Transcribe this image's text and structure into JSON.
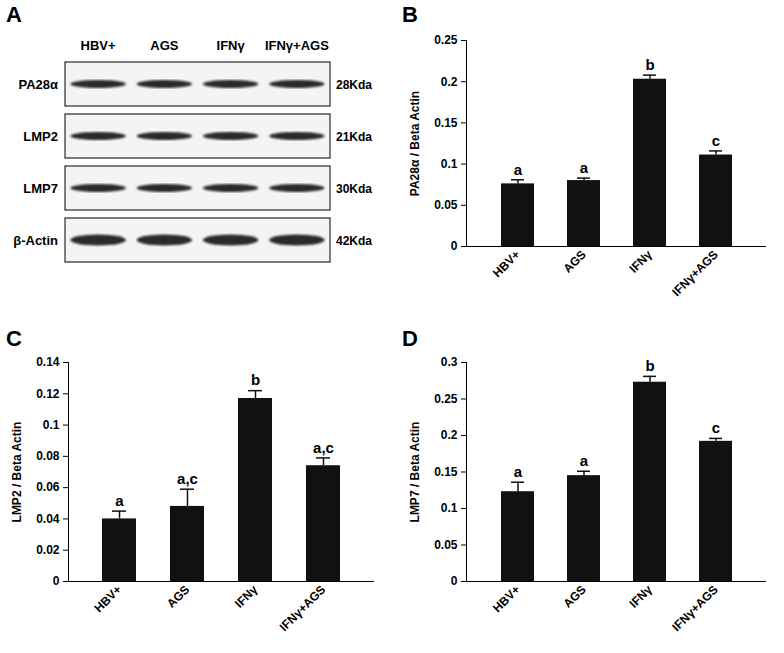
{
  "blot": {
    "panel": "A",
    "lanes": [
      "HBV+",
      "AGS",
      "IFNγ",
      "IFNγ+AGS"
    ],
    "rows": [
      {
        "protein": "PA28α",
        "size": "28Kda"
      },
      {
        "protein": "LMP2",
        "size": "21Kda"
      },
      {
        "protein": "LMP7",
        "size": "30Kda"
      },
      {
        "protein": "β-Actin",
        "size": "42Kda"
      }
    ]
  },
  "chart_data": [
    {
      "panel": "B",
      "type": "bar",
      "y_label": "PA28α / Beta Actin",
      "categories": [
        "HBV+",
        "AGS",
        "IFNγ",
        "IFNγ+AGS"
      ],
      "values": [
        0.076,
        0.08,
        0.203,
        0.111
      ],
      "errors": [
        0.005,
        0.003,
        0.005,
        0.005
      ],
      "annotations": [
        "a",
        "a",
        "b",
        "c"
      ],
      "color": "#111111",
      "ylim": [
        0,
        0.25
      ],
      "yticks": [
        0,
        0.05,
        0.1,
        0.15,
        0.2,
        0.25
      ]
    },
    {
      "panel": "C",
      "type": "bar",
      "y_label": "LMP2 / Beta Actin",
      "categories": [
        "HBV+",
        "AGS",
        "IFNγ",
        "IFNγ+AGS"
      ],
      "values": [
        0.04,
        0.048,
        0.117,
        0.074
      ],
      "errors": [
        0.005,
        0.011,
        0.005,
        0.005
      ],
      "annotations": [
        "a",
        "a,c",
        "b",
        "a,c"
      ],
      "color": "#111111",
      "ylim": [
        0,
        0.14
      ],
      "yticks": [
        0,
        0.02,
        0.04,
        0.06,
        0.08,
        0.1,
        0.12,
        0.14
      ]
    },
    {
      "panel": "D",
      "type": "bar",
      "y_label": "LMP7 / Beta Actin",
      "categories": [
        "HBV+",
        "AGS",
        "IFNγ",
        "IFNγ+AGS"
      ],
      "values": [
        0.123,
        0.145,
        0.273,
        0.192
      ],
      "errors": [
        0.013,
        0.006,
        0.008,
        0.004
      ],
      "annotations": [
        "a",
        "a",
        "b",
        "c"
      ],
      "color": "#111111",
      "ylim": [
        0,
        0.3
      ],
      "yticks": [
        0,
        0.05,
        0.1,
        0.15,
        0.2,
        0.25,
        0.3
      ]
    }
  ]
}
